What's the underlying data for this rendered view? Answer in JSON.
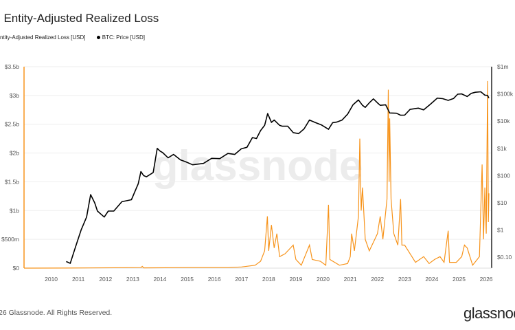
{
  "title": ": Entity-Adjusted Realized Loss",
  "footer": "26 Glassnode. All Rights Reserved.",
  "logo": "glassnode",
  "watermark": "glassnode",
  "chart_data": {
    "type": "line",
    "title": ": Entity-Adjusted Realized Loss",
    "legend": [
      "ntity-Adjusted Realized Loss [USD]",
      "BTC: Price [USD]"
    ],
    "legend_placement": "top-left",
    "grid": true,
    "colors": {
      "loss": "#f7931a",
      "price": "#000000"
    },
    "x_ticks": [
      "2010",
      "2011",
      "2012",
      "2013",
      "2014",
      "2015",
      "2016",
      "2017",
      "2018",
      "2019",
      "2020",
      "2021",
      "2022",
      "2023",
      "2024",
      "2025",
      "2026"
    ],
    "xlim": [
      2009.0,
      2026.2
    ],
    "left_axis": {
      "ticks": [
        "$0",
        "$500m",
        "$1b",
        "$1.5b",
        "$2b",
        "$2.5b",
        "$3b",
        "$3.5b"
      ],
      "values": [
        0,
        0.5,
        1,
        1.5,
        2,
        2.5,
        3,
        3.5
      ],
      "unit": "USD billions",
      "range": [
        0,
        3.5
      ]
    },
    "right_axis": {
      "scale": "log",
      "ticks": [
        "$0.10",
        "$1",
        "$10",
        "$100",
        "$1k",
        "$10k",
        "$100k",
        "$1m"
      ],
      "values": [
        0.1,
        1,
        10,
        100,
        1000,
        10000,
        100000,
        1000000
      ],
      "range": [
        0.04,
        1000000
      ]
    },
    "series": [
      {
        "name": "ntity-Adjusted Realized Loss [USD]",
        "axis": "left",
        "points": [
          [
            2009.0,
            0
          ],
          [
            2010.5,
            0.001
          ],
          [
            2013.3,
            0.01
          ],
          [
            2013.35,
            0.03
          ],
          [
            2013.4,
            0.005
          ],
          [
            2015.0,
            0.01
          ],
          [
            2016.5,
            0.01
          ],
          [
            2017.0,
            0.02
          ],
          [
            2017.5,
            0.05
          ],
          [
            2017.7,
            0.12
          ],
          [
            2017.85,
            0.3
          ],
          [
            2017.95,
            0.9
          ],
          [
            2018.0,
            0.3
          ],
          [
            2018.1,
            0.75
          ],
          [
            2018.2,
            0.35
          ],
          [
            2018.3,
            0.6
          ],
          [
            2018.4,
            0.2
          ],
          [
            2018.6,
            0.25
          ],
          [
            2018.9,
            0.4
          ],
          [
            2019.0,
            0.15
          ],
          [
            2019.2,
            0.05
          ],
          [
            2019.5,
            0.4
          ],
          [
            2019.6,
            0.15
          ],
          [
            2019.9,
            0.12
          ],
          [
            2020.1,
            0.05
          ],
          [
            2020.2,
            1.1
          ],
          [
            2020.25,
            0.15
          ],
          [
            2020.6,
            0.05
          ],
          [
            2020.9,
            0.08
          ],
          [
            2021.0,
            0.2
          ],
          [
            2021.05,
            0.6
          ],
          [
            2021.15,
            0.3
          ],
          [
            2021.3,
            0.9
          ],
          [
            2021.35,
            2.25
          ],
          [
            2021.4,
            1.0
          ],
          [
            2021.45,
            1.4
          ],
          [
            2021.55,
            0.5
          ],
          [
            2021.7,
            0.3
          ],
          [
            2021.9,
            0.5
          ],
          [
            2022.0,
            0.6
          ],
          [
            2022.1,
            0.9
          ],
          [
            2022.2,
            0.5
          ],
          [
            2022.35,
            1.2
          ],
          [
            2022.4,
            3.1
          ],
          [
            2022.43,
            1.5
          ],
          [
            2022.45,
            2.6
          ],
          [
            2022.5,
            1.2
          ],
          [
            2022.6,
            0.6
          ],
          [
            2022.75,
            0.4
          ],
          [
            2022.85,
            1.2
          ],
          [
            2022.9,
            0.4
          ],
          [
            2023.0,
            0.4
          ],
          [
            2023.2,
            0.25
          ],
          [
            2023.4,
            0.1
          ],
          [
            2023.7,
            0.2
          ],
          [
            2023.9,
            0.08
          ],
          [
            2024.1,
            0.15
          ],
          [
            2024.3,
            0.2
          ],
          [
            2024.45,
            0.1
          ],
          [
            2024.6,
            0.65
          ],
          [
            2024.65,
            0.1
          ],
          [
            2024.9,
            0.1
          ],
          [
            2025.1,
            0.2
          ],
          [
            2025.2,
            0.4
          ],
          [
            2025.3,
            0.35
          ],
          [
            2025.5,
            0.05
          ],
          [
            2025.75,
            0.2
          ],
          [
            2025.85,
            1.8
          ],
          [
            2025.9,
            0.5
          ],
          [
            2025.95,
            1.4
          ],
          [
            2026.0,
            0.6
          ],
          [
            2026.05,
            3.25
          ],
          [
            2026.08,
            0.8
          ],
          [
            2026.1,
            1.3
          ]
        ]
      },
      {
        "name": "BTC: Price [USD]",
        "axis": "right",
        "points": [
          [
            2010.55,
            0.07
          ],
          [
            2010.7,
            0.06
          ],
          [
            2010.9,
            0.25
          ],
          [
            2011.1,
            1
          ],
          [
            2011.3,
            3
          ],
          [
            2011.45,
            20
          ],
          [
            2011.6,
            10
          ],
          [
            2011.7,
            5
          ],
          [
            2011.95,
            3
          ],
          [
            2012.1,
            5
          ],
          [
            2012.3,
            5
          ],
          [
            2012.6,
            11
          ],
          [
            2012.95,
            13
          ],
          [
            2013.2,
            50
          ],
          [
            2013.3,
            140
          ],
          [
            2013.4,
            100
          ],
          [
            2013.5,
            90
          ],
          [
            2013.75,
            130
          ],
          [
            2013.9,
            1000
          ],
          [
            2014.0,
            800
          ],
          [
            2014.1,
            700
          ],
          [
            2014.3,
            450
          ],
          [
            2014.5,
            600
          ],
          [
            2014.75,
            380
          ],
          [
            2014.95,
            320
          ],
          [
            2015.2,
            250
          ],
          [
            2015.6,
            280
          ],
          [
            2015.9,
            430
          ],
          [
            2016.2,
            420
          ],
          [
            2016.5,
            650
          ],
          [
            2016.75,
            600
          ],
          [
            2016.99,
            960
          ],
          [
            2017.2,
            1100
          ],
          [
            2017.4,
            2500
          ],
          [
            2017.55,
            2300
          ],
          [
            2017.7,
            4500
          ],
          [
            2017.85,
            7000
          ],
          [
            2017.96,
            19000
          ],
          [
            2018.1,
            9000
          ],
          [
            2018.2,
            11000
          ],
          [
            2018.4,
            7000
          ],
          [
            2018.5,
            6500
          ],
          [
            2018.7,
            6500
          ],
          [
            2018.9,
            3800
          ],
          [
            2019.1,
            3500
          ],
          [
            2019.3,
            5200
          ],
          [
            2019.5,
            11000
          ],
          [
            2019.7,
            9000
          ],
          [
            2019.95,
            7200
          ],
          [
            2020.2,
            5000
          ],
          [
            2020.35,
            8800
          ],
          [
            2020.5,
            9200
          ],
          [
            2020.7,
            11000
          ],
          [
            2020.9,
            18000
          ],
          [
            2021.1,
            40000
          ],
          [
            2021.3,
            60000
          ],
          [
            2021.45,
            38000
          ],
          [
            2021.55,
            32000
          ],
          [
            2021.7,
            47000
          ],
          [
            2021.85,
            66000
          ],
          [
            2022.0,
            47000
          ],
          [
            2022.1,
            38000
          ],
          [
            2022.3,
            40000
          ],
          [
            2022.45,
            20000
          ],
          [
            2022.7,
            19500
          ],
          [
            2022.85,
            16500
          ],
          [
            2023.0,
            16600
          ],
          [
            2023.2,
            27000
          ],
          [
            2023.5,
            30000
          ],
          [
            2023.7,
            26000
          ],
          [
            2023.95,
            42000
          ],
          [
            2024.2,
            70000
          ],
          [
            2024.4,
            67000
          ],
          [
            2024.6,
            58000
          ],
          [
            2024.8,
            68000
          ],
          [
            2024.95,
            98000
          ],
          [
            2025.1,
            100000
          ],
          [
            2025.3,
            80000
          ],
          [
            2025.45,
            105000
          ],
          [
            2025.6,
            115000
          ],
          [
            2025.8,
            120000
          ],
          [
            2025.95,
            90000
          ],
          [
            2026.05,
            88000
          ],
          [
            2026.1,
            70000
          ]
        ]
      }
    ]
  }
}
